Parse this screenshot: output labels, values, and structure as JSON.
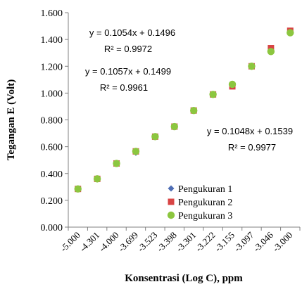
{
  "chart_data": {
    "type": "scatter",
    "categories": [
      "-5.000",
      "-4.301",
      "-4.000",
      "-3.699",
      "-3.523",
      "-3.398",
      "-3.301",
      "-3.222",
      "-3.155",
      "-3.097",
      "-3.046",
      "-3.000"
    ],
    "xlabel": "Konsentrasi (Log C), ppm",
    "ylabel": "Tegangan E (Volt)",
    "ylim": [
      0,
      1.6
    ],
    "yticks": [
      "0.000",
      "0.200",
      "0.400",
      "0.600",
      "0.800",
      "1.000",
      "1.200",
      "1.400",
      "1.600"
    ],
    "grid": false,
    "legend_position": "bottom-right",
    "series": [
      {
        "name": "Pengukuran 1",
        "marker": "diamond",
        "color": "#4F6EB5",
        "values": [
          0.285,
          0.36,
          0.475,
          0.555,
          0.675,
          0.75,
          0.87,
          0.99,
          1.06,
          1.2,
          1.32,
          1.46
        ]
      },
      {
        "name": "Pengukuran 2",
        "marker": "square",
        "color": "#D84444",
        "values": [
          0.285,
          0.36,
          0.475,
          0.565,
          0.675,
          0.75,
          0.87,
          0.99,
          1.05,
          1.2,
          1.335,
          1.465
        ]
      },
      {
        "name": "Pengukuran 3",
        "marker": "circle",
        "color": "#8CC63F",
        "values": [
          0.285,
          0.36,
          0.475,
          0.565,
          0.675,
          0.75,
          0.87,
          0.99,
          1.065,
          1.2,
          1.31,
          1.45
        ]
      }
    ],
    "annotations": [
      {
        "equation": "y = 0.1054x + 0.1496",
        "r2": "R² = 0.9972"
      },
      {
        "equation": "y = 0.1057x + 0.1499",
        "r2": "R² = 0.9961"
      },
      {
        "equation": "y = 0.1048x + 0.1539",
        "r2": "R² = 0.9977"
      }
    ]
  }
}
